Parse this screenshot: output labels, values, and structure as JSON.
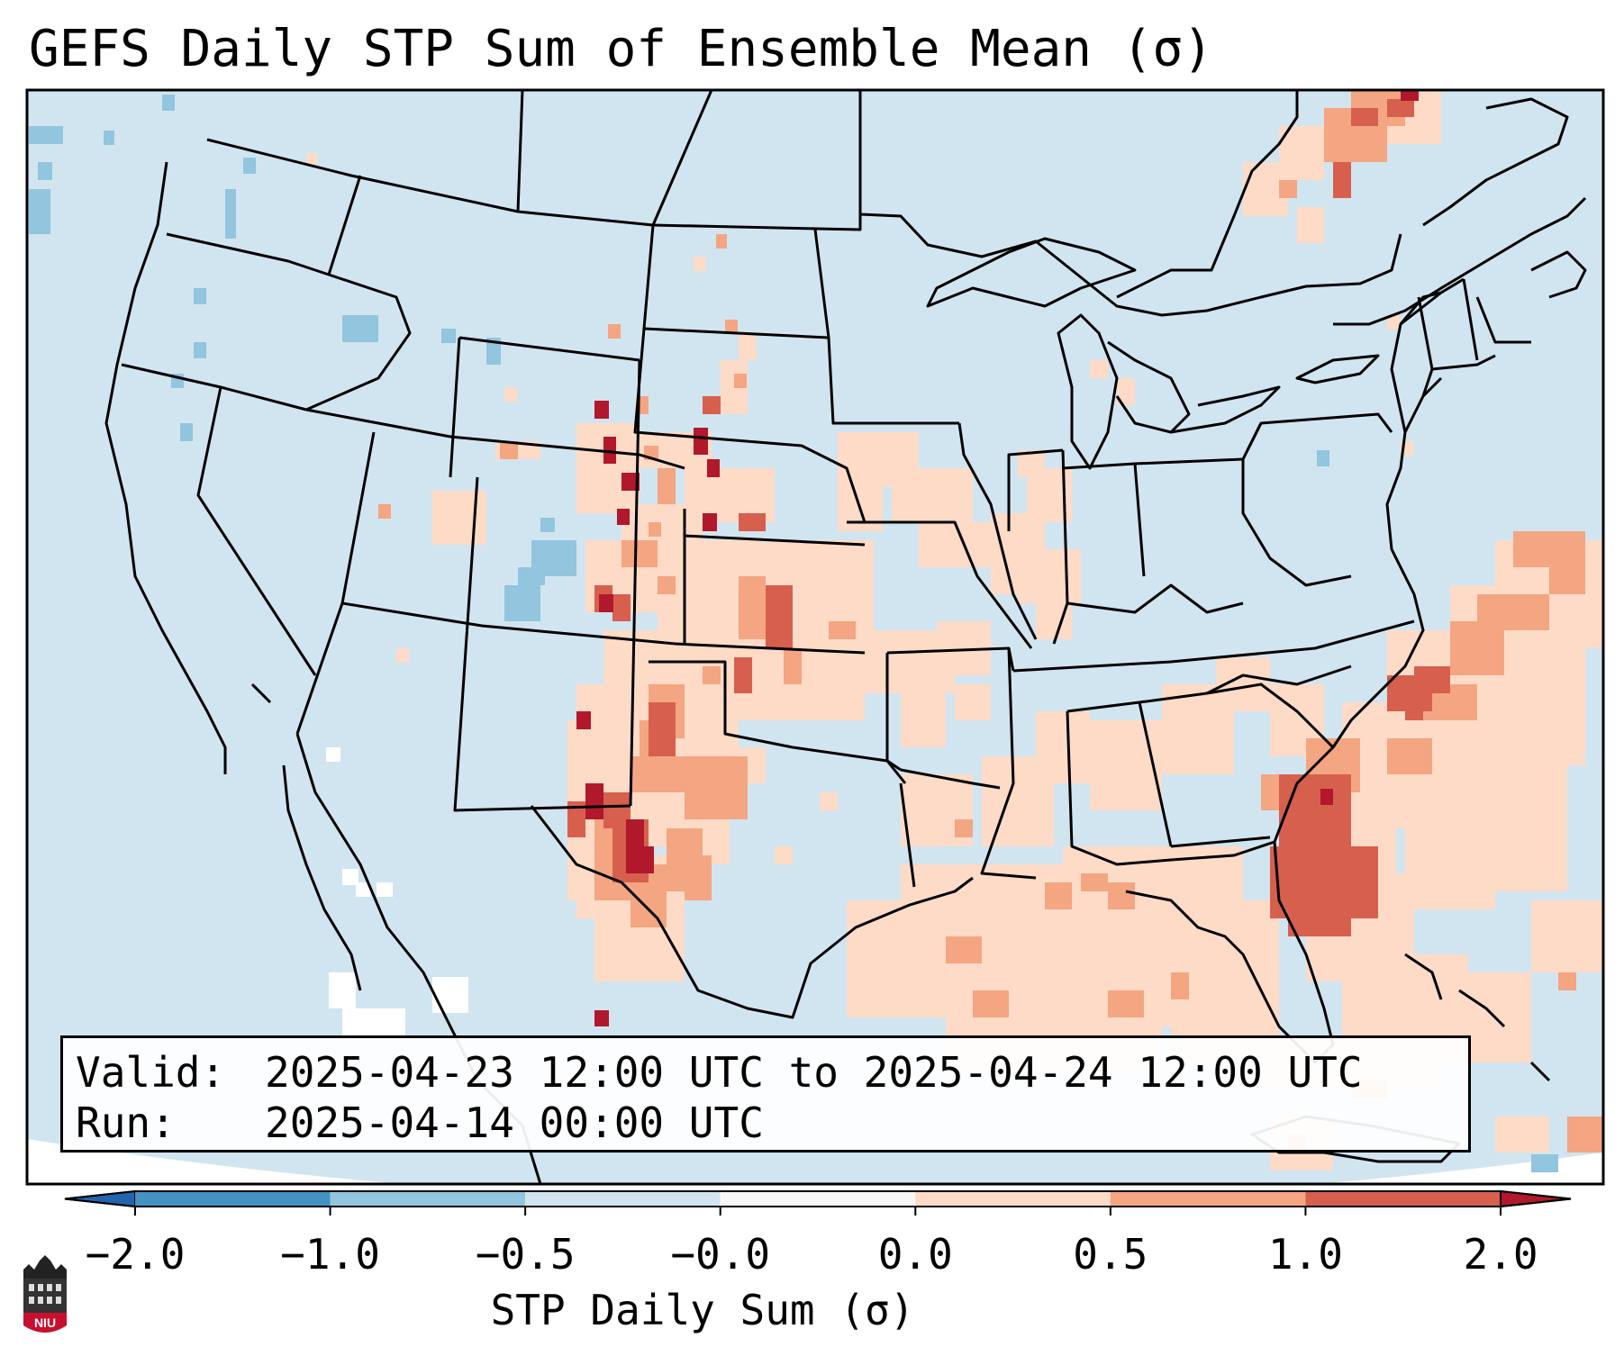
{
  "title": "GEFS Daily STP Sum of Ensemble Mean (σ)",
  "info": {
    "valid_label": "Valid:",
    "valid_value": "2025-04-23 12:00 UTC to 2025-04-24 12:00 UTC",
    "run_label": "Run:",
    "run_value": "2025-04-14 00:00 UTC"
  },
  "colorbar": {
    "label": "STP Daily Sum (σ)",
    "ticks": [
      "−2.0",
      "−1.0",
      "−0.5",
      "−0.0",
      "0.0",
      "0.5",
      "1.0",
      "2.0"
    ],
    "colors": [
      "#4393c3",
      "#92c5de",
      "#d1e5f0",
      "#f7f7f7",
      "#fddbc7",
      "#f4a582",
      "#d6604d",
      "#b2182b"
    ],
    "under_color": "#2166ac",
    "over_color": "#b2182b"
  },
  "map": {
    "region": "Contiguous United States",
    "background_color": "#d1e5f0",
    "projection": "Lambert Conformal"
  },
  "logo": {
    "text": "NIU"
  }
}
